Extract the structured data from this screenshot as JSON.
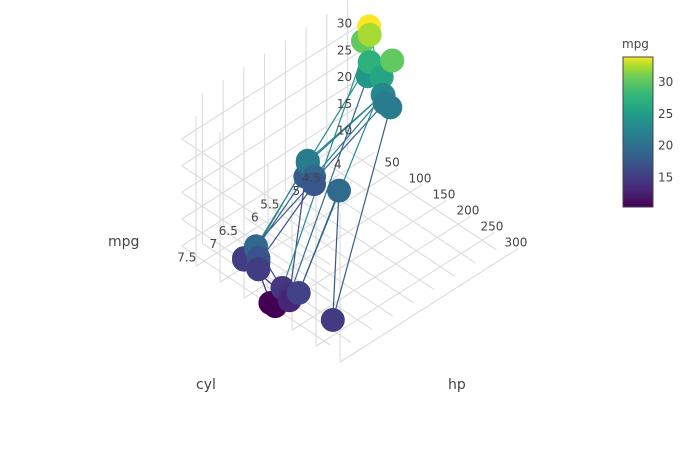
{
  "chart_data": {
    "type": "scatter3d",
    "mode": "lines+markers",
    "x_axis": {
      "label": "hp",
      "ticks": [
        "50",
        "100",
        "150",
        "200",
        "250",
        "300"
      ]
    },
    "y_axis": {
      "label": "cyl",
      "ticks": [
        "4",
        "4.5",
        "5",
        "5.5",
        "6",
        "6.5",
        "7",
        "7.5"
      ]
    },
    "z_axis": {
      "label": "mpg",
      "ticks": [
        "10",
        "15",
        "20",
        "25",
        "30"
      ]
    },
    "colorbar": {
      "title": "mpg",
      "ticks": [
        "15",
        "20",
        "25",
        "30"
      ],
      "range": [
        10.4,
        33.9
      ],
      "colorscale": "viridis"
    },
    "grid": true,
    "legend": "none",
    "points": [
      {
        "hp": 110,
        "cyl": 6,
        "mpg": 21.0
      },
      {
        "hp": 110,
        "cyl": 6,
        "mpg": 21.0
      },
      {
        "hp": 93,
        "cyl": 4,
        "mpg": 22.8
      },
      {
        "hp": 110,
        "cyl": 6,
        "mpg": 21.4
      },
      {
        "hp": 175,
        "cyl": 8,
        "mpg": 18.7
      },
      {
        "hp": 105,
        "cyl": 6,
        "mpg": 18.1
      },
      {
        "hp": 245,
        "cyl": 8,
        "mpg": 14.3
      },
      {
        "hp": 62,
        "cyl": 4,
        "mpg": 24.4
      },
      {
        "hp": 95,
        "cyl": 4,
        "mpg": 22.8
      },
      {
        "hp": 123,
        "cyl": 6,
        "mpg": 19.2
      },
      {
        "hp": 123,
        "cyl": 6,
        "mpg": 17.8
      },
      {
        "hp": 180,
        "cyl": 8,
        "mpg": 16.4
      },
      {
        "hp": 180,
        "cyl": 8,
        "mpg": 17.3
      },
      {
        "hp": 180,
        "cyl": 8,
        "mpg": 15.2
      },
      {
        "hp": 205,
        "cyl": 8,
        "mpg": 10.4
      },
      {
        "hp": 215,
        "cyl": 8,
        "mpg": 10.4
      },
      {
        "hp": 230,
        "cyl": 8,
        "mpg": 14.7
      },
      {
        "hp": 66,
        "cyl": 4,
        "mpg": 32.4
      },
      {
        "hp": 52,
        "cyl": 4,
        "mpg": 30.4
      },
      {
        "hp": 65,
        "cyl": 4,
        "mpg": 33.9
      },
      {
        "hp": 97,
        "cyl": 4,
        "mpg": 21.5
      },
      {
        "hp": 150,
        "cyl": 8,
        "mpg": 15.5
      },
      {
        "hp": 150,
        "cyl": 8,
        "mpg": 15.2
      },
      {
        "hp": 245,
        "cyl": 8,
        "mpg": 13.3
      },
      {
        "hp": 175,
        "cyl": 8,
        "mpg": 19.2
      },
      {
        "hp": 66,
        "cyl": 4,
        "mpg": 27.3
      },
      {
        "hp": 91,
        "cyl": 4,
        "mpg": 26.0
      },
      {
        "hp": 113,
        "cyl": 4,
        "mpg": 30.4
      },
      {
        "hp": 264,
        "cyl": 8,
        "mpg": 15.8
      },
      {
        "hp": 175,
        "cyl": 6,
        "mpg": 19.7
      },
      {
        "hp": 335,
        "cyl": 8,
        "mpg": 15.0
      },
      {
        "hp": 109,
        "cyl": 4,
        "mpg": 21.4
      }
    ]
  }
}
